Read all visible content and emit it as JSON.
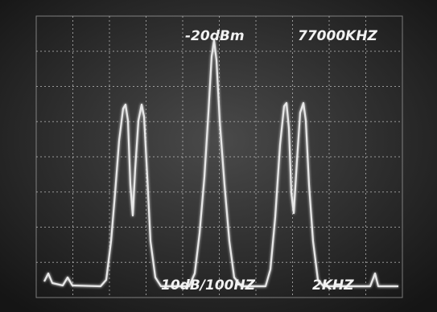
{
  "screen": {
    "reference_level": "-20dBm",
    "center_frequency": "77000KHZ",
    "scale": "10dB/100HZ",
    "span": "2KHZ"
  }
}
